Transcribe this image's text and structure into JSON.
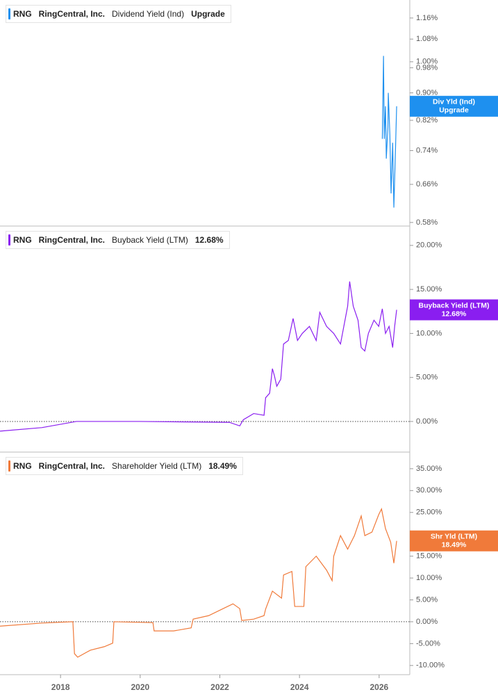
{
  "chart_data": [
    {
      "type": "line",
      "ticker": "RNG",
      "company": "RingCentral, Inc.",
      "log_scale": true,
      "zero_line": false,
      "xlim": [
        2016.48,
        2026.77
      ],
      "ylim": [
        0.573,
        1.233
      ],
      "yticks": [
        {
          "value": 0.58,
          "label": "0.58%"
        },
        {
          "value": 0.66,
          "label": "0.66%"
        },
        {
          "value": 0.74,
          "label": "0.74%"
        },
        {
          "value": 0.82,
          "label": "0.82%"
        },
        {
          "value": 0.9,
          "label": "0.90%"
        },
        {
          "value": 0.98,
          "label": "0.98%"
        },
        {
          "value": 1.0,
          "label": "1.00%"
        },
        {
          "value": 1.08,
          "label": "1.08%"
        },
        {
          "value": 1.16,
          "label": "1.16%"
        }
      ],
      "series": [
        {
          "name": "Dividend Yield (Ind)",
          "short_name": "Div Yld (Ind)",
          "current_label": "Upgrade",
          "color": "#1e90ef",
          "x": [
            2026.08,
            2026.11,
            2026.13,
            2026.16,
            2026.18,
            2026.22,
            2026.23,
            2026.27,
            2026.3,
            2026.34,
            2026.37,
            2026.41,
            2026.44
          ],
          "values": [
            0.77,
            1.02,
            0.77,
            0.86,
            0.72,
            0.8,
            0.9,
            0.78,
            0.64,
            0.76,
            0.61,
            0.74,
            0.86
          ]
        }
      ]
    },
    {
      "type": "line",
      "ticker": "RNG",
      "company": "RingCentral, Inc.",
      "log_scale": false,
      "zero_line": true,
      "xlim": [
        2016.48,
        2026.77
      ],
      "ylim": [
        -3.48,
        22.2
      ],
      "yticks": [
        {
          "value": 0,
          "label": "0.00%"
        },
        {
          "value": 5,
          "label": "5.00%"
        },
        {
          "value": 10,
          "label": "10.00%"
        },
        {
          "value": 15,
          "label": "15.00%"
        },
        {
          "value": 20,
          "label": "20.00%"
        }
      ],
      "series": [
        {
          "name": "Buyback Yield (LTM)",
          "short_name": "Buyback Yield (LTM)",
          "current_label": "12.68%",
          "color": "#8a1ef0",
          "x": [
            2016.48,
            2017.53,
            2018.4,
            2019.97,
            2022.24,
            2022.5,
            2022.59,
            2022.85,
            2023.11,
            2023.15,
            2023.25,
            2023.32,
            2023.37,
            2023.43,
            2023.53,
            2023.6,
            2023.72,
            2023.84,
            2023.95,
            2024.07,
            2024.25,
            2024.42,
            2024.51,
            2024.68,
            2024.86,
            2025.03,
            2025.21,
            2025.26,
            2025.35,
            2025.47,
            2025.55,
            2025.64,
            2025.73,
            2025.87,
            2025.99,
            2026.08,
            2026.16,
            2026.25,
            2026.34,
            2026.39,
            2026.44
          ],
          "values": [
            -1.1,
            -0.7,
            0,
            0,
            -0.1,
            -0.5,
            0.2,
            0.9,
            0.7,
            2.7,
            3.2,
            6,
            5.2,
            4,
            4.8,
            8.8,
            9.2,
            11.7,
            9.2,
            10,
            10.8,
            9.2,
            12.4,
            10.8,
            10,
            8.8,
            13.1,
            15.9,
            13.1,
            11.5,
            8.4,
            8,
            10,
            11.5,
            10.8,
            12.8,
            10,
            10.8,
            8.4,
            10.8,
            12.68
          ]
        }
      ]
    },
    {
      "type": "line",
      "ticker": "RNG",
      "company": "RingCentral, Inc.",
      "log_scale": false,
      "zero_line": true,
      "xlim": [
        2016.48,
        2026.77
      ],
      "ylim": [
        -12.1,
        38.8
      ],
      "xticks": [
        2018,
        2020,
        2022,
        2024,
        2026
      ],
      "yticks": [
        {
          "value": -10,
          "label": "-10.00%"
        },
        {
          "value": -5,
          "label": "-5.00%"
        },
        {
          "value": 0,
          "label": "0.00%"
        },
        {
          "value": 5,
          "label": "5.00%"
        },
        {
          "value": 10,
          "label": "10.00%"
        },
        {
          "value": 15,
          "label": "15.00%"
        },
        {
          "value": 20,
          "label": "20.00%"
        },
        {
          "value": 25,
          "label": "25.00%"
        },
        {
          "value": 30,
          "label": "30.00%"
        },
        {
          "value": 35,
          "label": "35.00%"
        }
      ],
      "series": [
        {
          "name": "Shareholder Yield (LTM)",
          "short_name": "Shr Yld (LTM)",
          "current_label": "18.49%",
          "color": "#f07a3a",
          "x": [
            2016.48,
            2017.53,
            2018.31,
            2018.35,
            2018.43,
            2018.75,
            2019.1,
            2019.31,
            2019.34,
            2020.32,
            2020.35,
            2020.84,
            2021.28,
            2021.33,
            2021.72,
            2022.06,
            2022.33,
            2022.5,
            2022.55,
            2022.85,
            2023.11,
            2023.15,
            2023.32,
            2023.55,
            2023.6,
            2023.81,
            2023.88,
            2024.11,
            2024.16,
            2024.42,
            2024.68,
            2024.82,
            2024.86,
            2025.03,
            2025.21,
            2025.38,
            2025.55,
            2025.64,
            2025.82,
            2025.99,
            2026.06,
            2026.16,
            2026.29,
            2026.37,
            2026.44
          ],
          "values": [
            -1,
            -0.3,
            0,
            -7.3,
            -8.1,
            -6.5,
            -5.7,
            -4.9,
            0,
            -0.2,
            -2.1,
            -2.1,
            -1.4,
            0.6,
            1.4,
            2.9,
            4.1,
            3,
            0.3,
            0.6,
            1.4,
            2.9,
            7,
            5.4,
            10.7,
            11.5,
            3.5,
            3.5,
            12.6,
            15,
            11.8,
            9.4,
            15,
            19.7,
            16.6,
            19.7,
            24.2,
            19.7,
            20.5,
            24.5,
            25.8,
            21.3,
            18.2,
            13.4,
            18.49
          ]
        }
      ]
    }
  ]
}
